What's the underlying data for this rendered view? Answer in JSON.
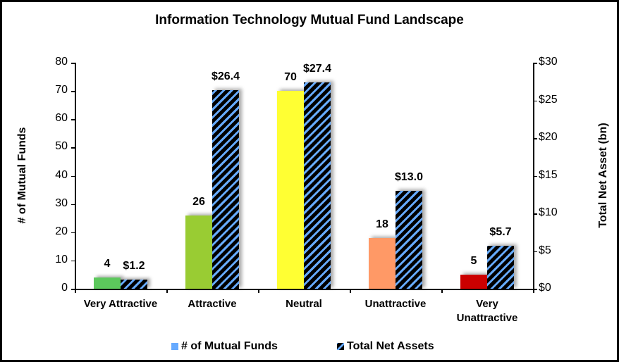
{
  "chart_data": {
    "type": "bar",
    "title": "Information Technology Mutual Fund Landscape",
    "categories": [
      "Very Attractive",
      "Attractive",
      "Neutral",
      "Unattractive",
      "Very Unattractive"
    ],
    "category_lines": [
      [
        "Very Attractive"
      ],
      [
        "Attractive"
      ],
      [
        "Neutral"
      ],
      [
        "Unattractive"
      ],
      [
        "Very",
        "Unattractive"
      ]
    ],
    "series": [
      {
        "name": "# of Mutual Funds",
        "axis": "left",
        "values": [
          4,
          26,
          70,
          18,
          5
        ],
        "labels": [
          "4",
          "26",
          "70",
          "18",
          "5"
        ],
        "colors": [
          "#5cc85c",
          "#99cc33",
          "#ffff33",
          "#ff9966",
          "#cc0000"
        ]
      },
      {
        "name": "Total Net Assets",
        "axis": "right",
        "values": [
          1.2,
          26.4,
          27.4,
          13.0,
          5.7
        ],
        "labels": [
          "$1.2",
          "$26.4",
          "$27.4",
          "$13.0",
          "$5.7"
        ],
        "pattern": "black/blue diagonal hatch",
        "colors": [
          "#000000",
          "#66aaff"
        ]
      }
    ],
    "ylabel": "# of Mutual Funds",
    "ylim": [
      0,
      80
    ],
    "yticks": [
      "0",
      "10",
      "20",
      "30",
      "40",
      "50",
      "60",
      "70",
      "80"
    ],
    "y2label": "Total Net Asset (bn)",
    "y2lim": [
      0,
      30
    ],
    "y2ticks": [
      "$0",
      "$5",
      "$10",
      "$15",
      "$20",
      "$25",
      "$30"
    ],
    "grid": false,
    "legend_position": "bottom",
    "legend": [
      "# of Mutual Funds",
      "Total Net Assets"
    ]
  }
}
